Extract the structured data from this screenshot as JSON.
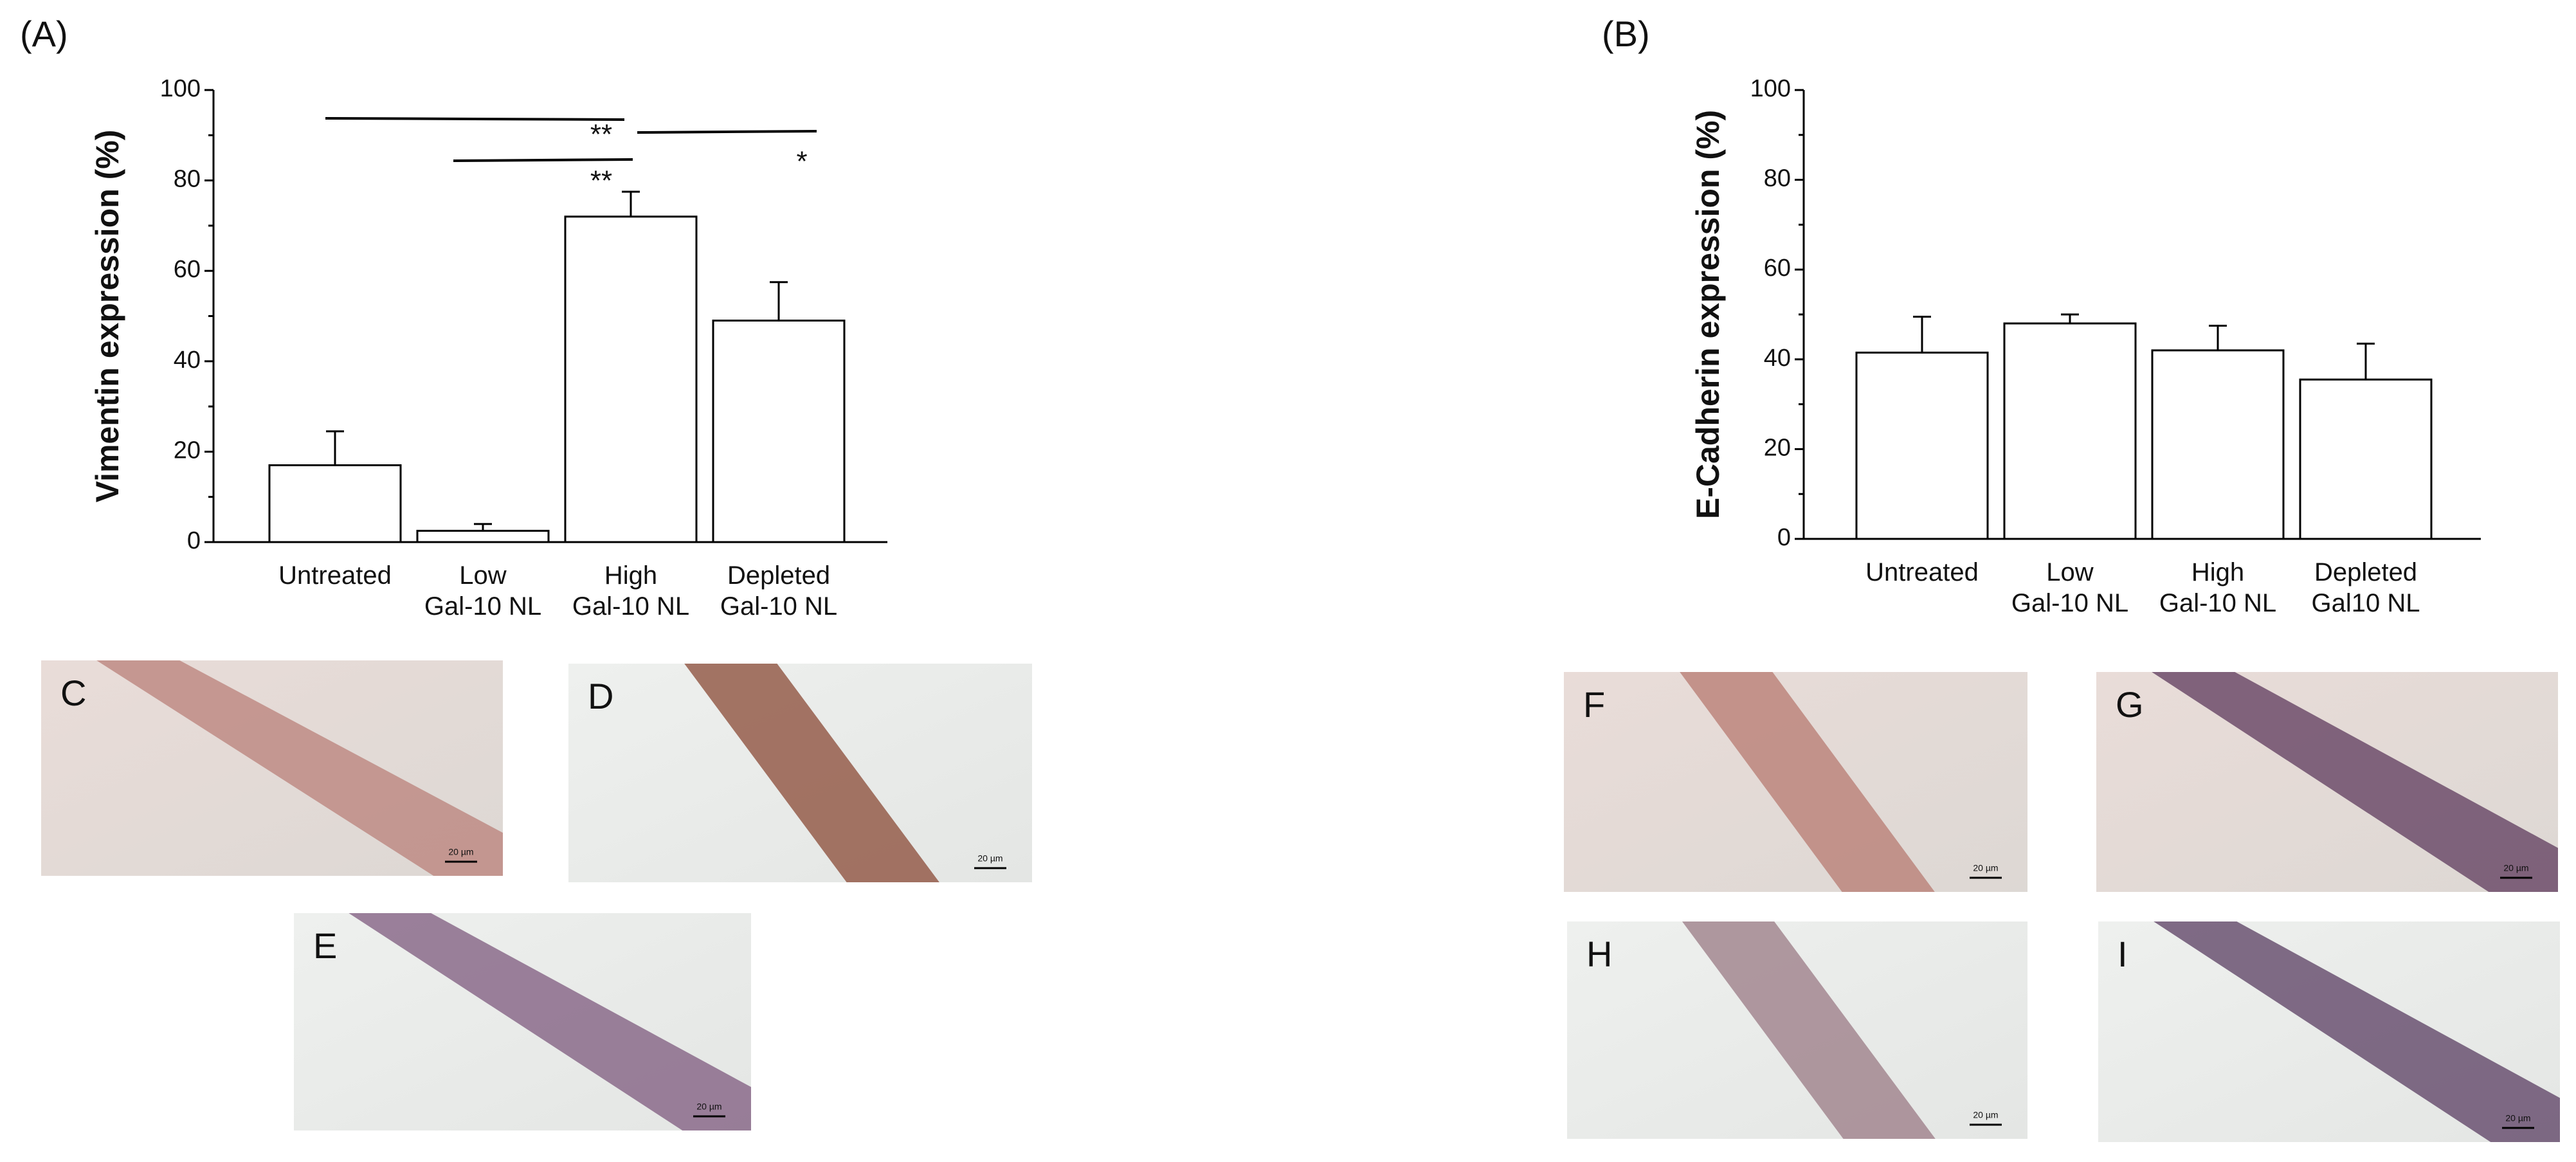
{
  "chart_data": [
    {
      "type": "bar",
      "label": "(A)",
      "ylabel": "Vimentin expression (%)",
      "categories": [
        "Untreated",
        "Low\nGal-10 NL",
        "High\nGal-10 NL",
        "Depleted\nGal-10 NL"
      ],
      "values": [
        17,
        2.5,
        72,
        49
      ],
      "errors": [
        7.5,
        1.5,
        5.5,
        8.5
      ],
      "color": "#ffffff",
      "ylim": [
        0,
        100
      ],
      "yticks": [
        0,
        20,
        40,
        60,
        80,
        100
      ],
      "yminorticks": [
        10,
        30,
        50,
        70,
        90
      ],
      "annotations": [
        "**",
        "*",
        "**"
      ]
    },
    {
      "type": "bar",
      "label": "(B)",
      "ylabel": "E-Cadherin expression (%)",
      "categories": [
        "Untreated",
        "Low\nGal-10 NL",
        "High\nGal-10 NL",
        "Depleted\nGal10 NL"
      ],
      "values": [
        41.5,
        48,
        42,
        35.5
      ],
      "errors": [
        8,
        2,
        5.5,
        8
      ],
      "color": "#ffffff",
      "ylim": [
        0,
        100
      ],
      "yticks": [
        0,
        20,
        40,
        60,
        80,
        100
      ],
      "yminorticks": [
        10,
        30,
        50,
        70,
        90
      ]
    }
  ],
  "images": [
    {
      "label": "C"
    },
    {
      "label": "D"
    },
    {
      "label": "E"
    },
    {
      "label": "F"
    },
    {
      "label": "G"
    },
    {
      "label": "H"
    },
    {
      "label": "I"
    }
  ],
  "scale_bar": "20 µm"
}
